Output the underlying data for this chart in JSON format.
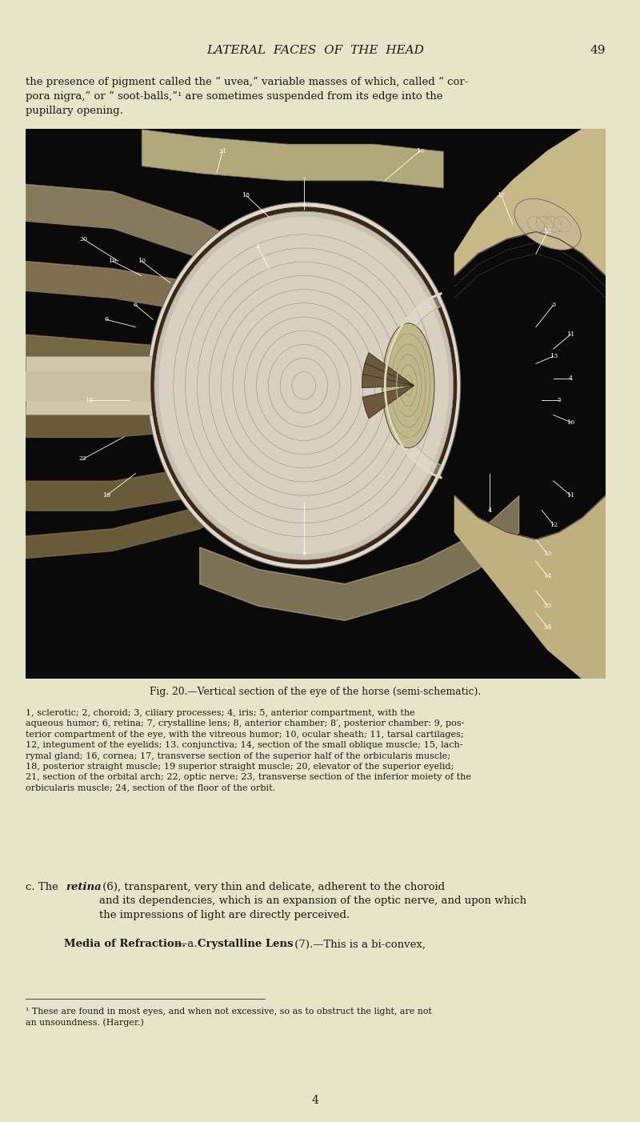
{
  "bg_color": "#e8e4c8",
  "page_width": 8.0,
  "page_height": 14.02,
  "dpi": 100,
  "header_text": "LATERAL  FACES  OF  THE  HEAD",
  "header_page_num": "49",
  "intro_text": "the presence of pigment called the “ uvea,” variable masses of which, called “ cor-\npora nigra,” or “ soot-balls,”¹ are sometimes suspended from its edge into the\npupillary opening.",
  "fig_caption": "Fig. 20.—Vertical section of the eye of the horse (semi-schematic).",
  "fig_label_text": "1, sclerotic; 2, choroid; 3, ciliary processes; 4, iris; 5, anterior compartment, with the\naqueous humor; 6, retina; 7, crystalline lens; 8, anterior chamber; 8′, posterior chamber: 9, pos-\nterior compartment of the eye, with the vitreous humor; 10, ocular sheath; 11, tarsal cartilages;\n12, integument of the eyelids; 13. conjunctiva; 14, section of the small oblique muscle; 15, lach-\nrymal gland; 16, cornea; 17, transverse section of the superior half of the orbicularis muscle;\n18, posterior straight muscle; 19 superior straight muscle; 20, elevator of the superior eyelid;\n21, section of the orbital arch; 22, optic nerve; 23, transverse section of the inferior moiety of the\norbicularis muscle; 24, section of the floor of the orbit.",
  "body_text_retina_prefix": "c. The ",
  "body_text_retina_bold": "retina",
  "body_text_retina_suffix": " (6), transparent, very thin and delicate, adherent to the choroid\nand its dependencies, which is an expansion of the optic nerve, and upon which\nthe impressions of light are directly perceived.",
  "body_media_bold": "Media of Refraction.",
  "body_media_dash": "—a. ",
  "body_lens_bold": "Crystalline Lens",
  "body_lens_suffix": " (7).—This is a bi-convex,",
  "footnote_text": "¹ These are found in most eyes, and when not excessive, so as to obstruct the light, are not\nan unsoundness. (Harger.)",
  "footer_page_num": "4",
  "text_color": "#1a1a1a",
  "header_color": "#1a1a1a"
}
